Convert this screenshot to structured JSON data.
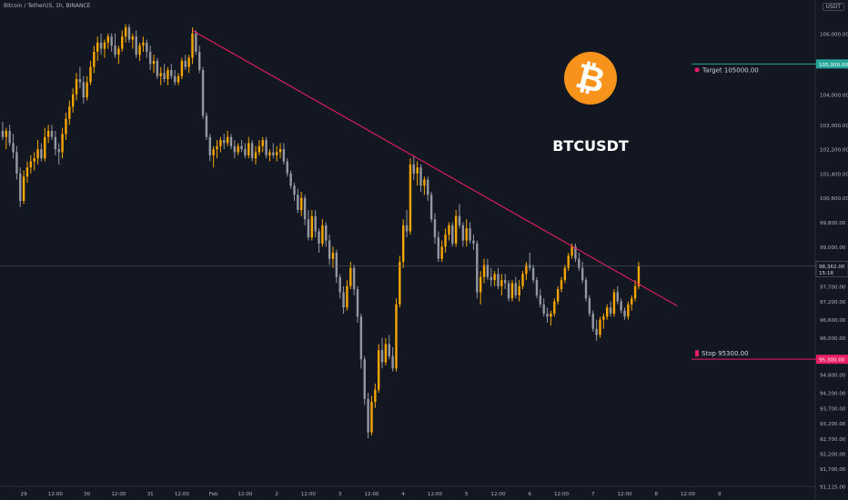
{
  "header": {
    "title": "Bitcoin / TetherUS, 1h, BINANCE",
    "currency": "USDT"
  },
  "colors": {
    "bg": "#131722",
    "bull": "#f7a600",
    "bear": "#9598a1",
    "trendline": "#e91e63",
    "target": "#26a69a",
    "stop": "#e91e63",
    "logo": "#f7931a"
  },
  "chart_data": {
    "type": "candlestick",
    "title": "BTCUSDT",
    "ylim": [
      91125,
      107100
    ],
    "xlim": [
      0,
      232
    ],
    "grid": false,
    "y_ticks": [
      {
        "v": 106000,
        "label": "106,000.00"
      },
      {
        "v": 104000,
        "label": "104,000.00"
      },
      {
        "v": 103000,
        "label": "103,000.00"
      },
      {
        "v": 102200,
        "label": "102,200.00"
      },
      {
        "v": 101400,
        "label": "101,400.00"
      },
      {
        "v": 100600,
        "label": "100,600.00"
      },
      {
        "v": 99800,
        "label": "99,800.00"
      },
      {
        "v": 99000,
        "label": "99,000.00"
      },
      {
        "v": 97700,
        "label": "97,700.00"
      },
      {
        "v": 97200,
        "label": "97,200.00"
      },
      {
        "v": 96600,
        "label": "96,600.00"
      },
      {
        "v": 96000,
        "label": "96,000.00"
      },
      {
        "v": 94800,
        "label": "94,800.00"
      },
      {
        "v": 94200,
        "label": "94,200.00"
      },
      {
        "v": 93700,
        "label": "93,700.00"
      },
      {
        "v": 93200,
        "label": "93,200.00"
      },
      {
        "v": 92700,
        "label": "92,700.00"
      },
      {
        "v": 92200,
        "label": "92,200.00"
      },
      {
        "v": 91700,
        "label": "91,700.00"
      },
      {
        "v": 91125,
        "label": "91,125.00"
      }
    ],
    "x_ticks": [
      {
        "x": 6,
        "label": "29"
      },
      {
        "x": 15,
        "label": "12:00"
      },
      {
        "x": 24,
        "label": "30"
      },
      {
        "x": 33,
        "label": "12:00"
      },
      {
        "x": 42,
        "label": "31"
      },
      {
        "x": 51,
        "label": "12:00"
      },
      {
        "x": 60,
        "label": "Feb"
      },
      {
        "x": 69,
        "label": "12:00"
      },
      {
        "x": 78,
        "label": "2"
      },
      {
        "x": 87,
        "label": "12:00"
      },
      {
        "x": 96,
        "label": "3"
      },
      {
        "x": 105,
        "label": "12:00"
      },
      {
        "x": 114,
        "label": "4"
      },
      {
        "x": 123,
        "label": "12:00"
      },
      {
        "x": 132,
        "label": "5"
      },
      {
        "x": 141,
        "label": "12:00"
      },
      {
        "x": 150,
        "label": "6"
      },
      {
        "x": 159,
        "label": "12:00"
      },
      {
        "x": 168,
        "label": "7"
      },
      {
        "x": 177,
        "label": "12:00"
      },
      {
        "x": 186,
        "label": "8"
      },
      {
        "x": 195,
        "label": "12:00"
      },
      {
        "x": 204,
        "label": "9"
      }
    ],
    "last_price": {
      "value": 98362,
      "label": "98,362.00",
      "countdown": "15:18"
    },
    "target": {
      "value": 105000,
      "label": "Target 105000.00",
      "axis_label": "105,000.00"
    },
    "stop": {
      "value": 95300,
      "label": "Stop 95300.00",
      "axis_label": "95,300.00"
    },
    "trendline": [
      {
        "x": 54,
        "y": 106100
      },
      {
        "x": 192,
        "y": 97050
      }
    ],
    "logo_symbol": "₿",
    "candles": [
      [
        102800,
        103100,
        102500,
        102600
      ],
      [
        102600,
        102900,
        102200,
        102800
      ],
      [
        102800,
        103000,
        102300,
        102400
      ],
      [
        102400,
        102700,
        101900,
        102100
      ],
      [
        102100,
        102300,
        101200,
        101400
      ],
      [
        101400,
        101600,
        100300,
        100500
      ],
      [
        100500,
        101500,
        100400,
        101300
      ],
      [
        101300,
        101800,
        101100,
        101600
      ],
      [
        101600,
        102000,
        101400,
        101800
      ],
      [
        101800,
        102100,
        101500,
        101900
      ],
      [
        101900,
        102500,
        101700,
        102200
      ],
      [
        102200,
        102400,
        101800,
        101900
      ],
      [
        101900,
        102900,
        101800,
        102600
      ],
      [
        102600,
        103000,
        102400,
        102800
      ],
      [
        102800,
        103000,
        102500,
        102600
      ],
      [
        102600,
        102800,
        102000,
        102200
      ],
      [
        102200,
        102400,
        101700,
        102100
      ],
      [
        102100,
        102900,
        101900,
        102700
      ],
      [
        102700,
        103400,
        102500,
        103200
      ],
      [
        103200,
        103800,
        103000,
        103600
      ],
      [
        103600,
        104200,
        103400,
        104000
      ],
      [
        104000,
        104700,
        103800,
        104500
      ],
      [
        104500,
        104900,
        104200,
        104400
      ],
      [
        104400,
        104600,
        103700,
        103900
      ],
      [
        103900,
        104600,
        103800,
        104400
      ],
      [
        104400,
        105100,
        104300,
        104900
      ],
      [
        104900,
        105600,
        104700,
        105400
      ],
      [
        105400,
        105900,
        105100,
        105700
      ],
      [
        105700,
        106000,
        105300,
        105500
      ],
      [
        105500,
        105800,
        105200,
        105700
      ],
      [
        105700,
        106000,
        105500,
        105900
      ],
      [
        105900,
        106000,
        105400,
        105600
      ],
      [
        105600,
        106000,
        105200,
        105300
      ],
      [
        105300,
        105600,
        105000,
        105500
      ],
      [
        105500,
        106100,
        105400,
        105900
      ],
      [
        105900,
        106300,
        105700,
        106200
      ],
      [
        106200,
        106300,
        105700,
        105800
      ],
      [
        105800,
        106000,
        105500,
        105900
      ],
      [
        105900,
        106100,
        105200,
        105300
      ],
      [
        105300,
        105700,
        105100,
        105600
      ],
      [
        105600,
        105900,
        105400,
        105700
      ],
      [
        105700,
        105800,
        105200,
        105400
      ],
      [
        105400,
        105600,
        104800,
        105000
      ],
      [
        105000,
        105300,
        104700,
        105100
      ],
      [
        105100,
        105200,
        104500,
        104600
      ],
      [
        104600,
        104900,
        104300,
        104700
      ],
      [
        104700,
        105000,
        104400,
        104500
      ],
      [
        104500,
        104900,
        104300,
        104800
      ],
      [
        104800,
        105000,
        104500,
        104600
      ],
      [
        104600,
        104800,
        104300,
        104400
      ],
      [
        104400,
        104700,
        104300,
        104600
      ],
      [
        104600,
        105200,
        104500,
        105100
      ],
      [
        105100,
        105300,
        104800,
        104900
      ],
      [
        104900,
        105300,
        104700,
        105200
      ],
      [
        105200,
        106200,
        105000,
        106000
      ],
      [
        106000,
        106100,
        105300,
        105400
      ],
      [
        105400,
        105600,
        104700,
        104800
      ],
      [
        104800,
        104900,
        103200,
        103300
      ],
      [
        103300,
        103400,
        102500,
        102600
      ],
      [
        102600,
        102700,
        101800,
        102000
      ],
      [
        102000,
        102300,
        101600,
        102200
      ],
      [
        102200,
        102500,
        101900,
        102300
      ],
      [
        102300,
        102600,
        102100,
        102500
      ],
      [
        102500,
        102700,
        102200,
        102400
      ],
      [
        102400,
        102800,
        102300,
        102600
      ],
      [
        102600,
        102700,
        102200,
        102300
      ],
      [
        102300,
        102500,
        101900,
        102100
      ],
      [
        102100,
        102400,
        102000,
        102300
      ],
      [
        102300,
        102500,
        102100,
        102200
      ],
      [
        102200,
        102400,
        101900,
        102000
      ],
      [
        102000,
        102600,
        101900,
        102400
      ],
      [
        102400,
        102500,
        101800,
        101900
      ],
      [
        101900,
        102300,
        101700,
        102100
      ],
      [
        102100,
        102500,
        102000,
        102300
      ],
      [
        102300,
        102600,
        102100,
        102500
      ],
      [
        102500,
        102600,
        101900,
        102000
      ],
      [
        102000,
        102200,
        101800,
        102100
      ],
      [
        102100,
        102400,
        101900,
        102000
      ],
      [
        102000,
        102300,
        101800,
        102100
      ],
      [
        102100,
        102400,
        101900,
        102200
      ],
      [
        102200,
        102400,
        101700,
        101800
      ],
      [
        101800,
        101900,
        101300,
        101400
      ],
      [
        101400,
        101500,
        100900,
        101000
      ],
      [
        101000,
        101100,
        100500,
        100700
      ],
      [
        100700,
        100900,
        100100,
        100200
      ],
      [
        100200,
        100800,
        100000,
        100600
      ],
      [
        100600,
        100700,
        99700,
        99900
      ],
      [
        99900,
        100200,
        99200,
        99300
      ],
      [
        99300,
        100200,
        99200,
        100000
      ],
      [
        100000,
        100200,
        99300,
        99500
      ],
      [
        99500,
        99600,
        98800,
        99100
      ],
      [
        99100,
        99900,
        99000,
        99700
      ],
      [
        99700,
        99800,
        99000,
        99200
      ],
      [
        99200,
        99400,
        98400,
        98600
      ],
      [
        98600,
        99000,
        98300,
        98800
      ],
      [
        98800,
        98900,
        97800,
        98000
      ],
      [
        98000,
        98100,
        97300,
        97500
      ],
      [
        97500,
        97700,
        96800,
        97000
      ],
      [
        97000,
        97900,
        96900,
        97700
      ],
      [
        97700,
        98500,
        97600,
        98300
      ],
      [
        98300,
        98400,
        97400,
        97600
      ],
      [
        97600,
        97700,
        96500,
        96700
      ],
      [
        96700,
        96800,
        95000,
        95300
      ],
      [
        95300,
        95400,
        93800,
        94000
      ],
      [
        94000,
        94200,
        92700,
        92900
      ],
      [
        92900,
        94100,
        92800,
        93900
      ],
      [
        93900,
        94500,
        93700,
        94300
      ],
      [
        94300,
        95800,
        94200,
        95600
      ],
      [
        95600,
        96000,
        95000,
        95200
      ],
      [
        95200,
        96000,
        95100,
        95800
      ],
      [
        95800,
        96100,
        95300,
        95400
      ],
      [
        95400,
        95700,
        94900,
        95000
      ],
      [
        95000,
        97300,
        94900,
        97100
      ],
      [
        97100,
        98700,
        97000,
        98500
      ],
      [
        98500,
        99900,
        98300,
        99700
      ],
      [
        99700,
        100200,
        99300,
        99500
      ],
      [
        99500,
        101900,
        99400,
        101700
      ],
      [
        101700,
        102000,
        101200,
        101400
      ],
      [
        101400,
        101800,
        101000,
        101600
      ],
      [
        101600,
        101700,
        100800,
        101000
      ],
      [
        101000,
        101300,
        100700,
        101200
      ],
      [
        101200,
        101300,
        100500,
        100700
      ],
      [
        100700,
        100800,
        99800,
        99900
      ],
      [
        99900,
        100100,
        99100,
        99300
      ],
      [
        99300,
        99500,
        98500,
        98600
      ],
      [
        98600,
        99200,
        98500,
        99000
      ],
      [
        99000,
        99600,
        98800,
        99400
      ],
      [
        99400,
        99800,
        99200,
        99700
      ],
      [
        99700,
        99800,
        99000,
        99100
      ],
      [
        99100,
        100200,
        99000,
        100000
      ],
      [
        100000,
        100400,
        99600,
        99700
      ],
      [
        99700,
        99800,
        99000,
        99200
      ],
      [
        99200,
        99900,
        99000,
        99600
      ],
      [
        99600,
        99800,
        99100,
        99200
      ],
      [
        99200,
        99400,
        98900,
        99100
      ],
      [
        99100,
        99200,
        97300,
        97500
      ],
      [
        97500,
        98200,
        97100,
        98000
      ],
      [
        98000,
        98600,
        97800,
        98400
      ],
      [
        98400,
        98600,
        97900,
        98000
      ],
      [
        98000,
        98300,
        97700,
        97900
      ],
      [
        97900,
        98200,
        97700,
        98100
      ],
      [
        98100,
        98300,
        97600,
        97700
      ],
      [
        97700,
        98100,
        97400,
        97900
      ],
      [
        97900,
        98100,
        97600,
        97800
      ],
      [
        97800,
        97900,
        97200,
        97300
      ],
      [
        97300,
        97900,
        97200,
        97800
      ],
      [
        97800,
        98000,
        97300,
        97400
      ],
      [
        97400,
        97900,
        97200,
        97700
      ],
      [
        97700,
        98200,
        97600,
        98100
      ],
      [
        98100,
        98500,
        97900,
        98400
      ],
      [
        98400,
        98800,
        98200,
        98300
      ],
      [
        98300,
        98400,
        97800,
        97900
      ],
      [
        97900,
        98000,
        97300,
        97400
      ],
      [
        97400,
        97600,
        97000,
        97100
      ],
      [
        97100,
        97300,
        96700,
        96800
      ],
      [
        96800,
        97000,
        96500,
        96700
      ],
      [
        96700,
        96900,
        96400,
        96800
      ],
      [
        96800,
        97300,
        96700,
        97200
      ],
      [
        97200,
        97700,
        97100,
        97600
      ],
      [
        97600,
        98000,
        97500,
        97900
      ],
      [
        97900,
        98400,
        97800,
        98300
      ],
      [
        98300,
        98800,
        98200,
        98700
      ],
      [
        98700,
        99100,
        98600,
        99000
      ],
      [
        99000,
        99100,
        98500,
        98600
      ],
      [
        98600,
        98800,
        98200,
        98300
      ],
      [
        98300,
        98500,
        97800,
        97900
      ],
      [
        97900,
        98000,
        97200,
        97300
      ],
      [
        97300,
        97400,
        96700,
        96800
      ],
      [
        96800,
        96900,
        96200,
        96300
      ],
      [
        96300,
        96600,
        95900,
        96100
      ],
      [
        96100,
        96700,
        96000,
        96600
      ],
      [
        96600,
        96800,
        96300,
        96700
      ],
      [
        96700,
        97100,
        96600,
        97000
      ],
      [
        97000,
        97200,
        96700,
        96800
      ],
      [
        96800,
        97600,
        96700,
        97500
      ],
      [
        97500,
        97700,
        97100,
        97200
      ],
      [
        97200,
        97300,
        96800,
        96900
      ],
      [
        96900,
        97000,
        96600,
        96700
      ],
      [
        96700,
        97200,
        96600,
        97100
      ],
      [
        97100,
        97400,
        96900,
        97300
      ],
      [
        97300,
        97900,
        97200,
        97700
      ],
      [
        97700,
        98500,
        97600,
        98362
      ]
    ]
  }
}
